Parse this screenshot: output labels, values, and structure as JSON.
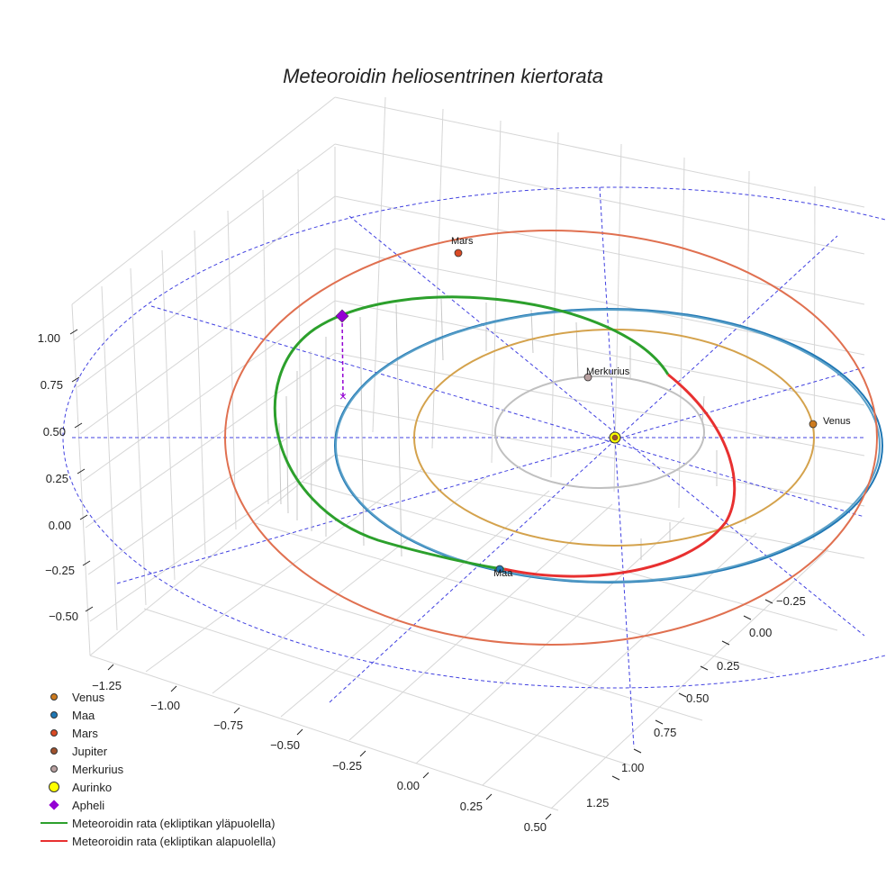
{
  "chart_data": {
    "type": "scatter3d",
    "title": "Meteoroidin heliosentrinen kiertorata",
    "x_ticks": [
      "−1.25",
      "−1.00",
      "−0.75",
      "−0.50",
      "−0.25",
      "0.00",
      "0.25",
      "0.50"
    ],
    "y_ticks": [
      "−0.25",
      "0.00",
      "0.25",
      "0.50",
      "0.75",
      "1.00",
      "1.25"
    ],
    "z_ticks": [
      "−0.50",
      "−0.25",
      "0.00",
      "0.25",
      "0.50",
      "0.75",
      "1.00"
    ],
    "planets": [
      {
        "name": "Venus",
        "label": "Venus",
        "color": "#cc7a1e"
      },
      {
        "name": "Maa",
        "label": "Maa",
        "color": "#1f77b4"
      },
      {
        "name": "Mars",
        "label": "Mars",
        "color": "#d94a24"
      },
      {
        "name": "Jupiter",
        "label": "",
        "color": "#a0522d"
      },
      {
        "name": "Merkurius",
        "label": "Merkurius",
        "color": "#b8a0a0"
      }
    ],
    "sun": {
      "name": "Aurinko",
      "color": "#ffff00"
    },
    "aphelion": {
      "name": "Apheli",
      "color": "#9400d3"
    },
    "orbit_colors": {
      "mercury": "#c0c0c0",
      "venus": "#d4a24c",
      "earth": "#5aa0c8",
      "earth_outer": "#1f77b4",
      "mars": "#e07050",
      "meteoroid_above": "#2ca02c",
      "meteoroid_below": "#e83030",
      "guide": "#4040e0"
    },
    "meteoroid_orbit": [
      {
        "name": "Meteoroidin rata (ekliptikan yläpuolella)",
        "color": "#2ca02c"
      },
      {
        "name": "Meteoroidin rata (ekliptikan alapuolella)",
        "color": "#e83030"
      }
    ]
  },
  "legend": [
    {
      "label": "Venus",
      "kind": "dot",
      "color": "#cc7a1e"
    },
    {
      "label": "Maa",
      "kind": "dot",
      "color": "#1f77b4"
    },
    {
      "label": "Mars",
      "kind": "dot",
      "color": "#d94a24"
    },
    {
      "label": "Jupiter",
      "kind": "dot",
      "color": "#a0522d"
    },
    {
      "label": "Merkurius",
      "kind": "dot",
      "color": "#b8a0a0"
    },
    {
      "label": "Aurinko",
      "kind": "bigdot",
      "color": "#ffff00"
    },
    {
      "label": "Apheli",
      "kind": "diamond",
      "color": "#9400d3"
    },
    {
      "label": "Meteoroidin rata (ekliptikan yläpuolella)",
      "kind": "line",
      "color": "#2ca02c"
    },
    {
      "label": "Meteoroidin rata (ekliptikan alapuolella)",
      "kind": "line",
      "color": "#e83030"
    }
  ]
}
